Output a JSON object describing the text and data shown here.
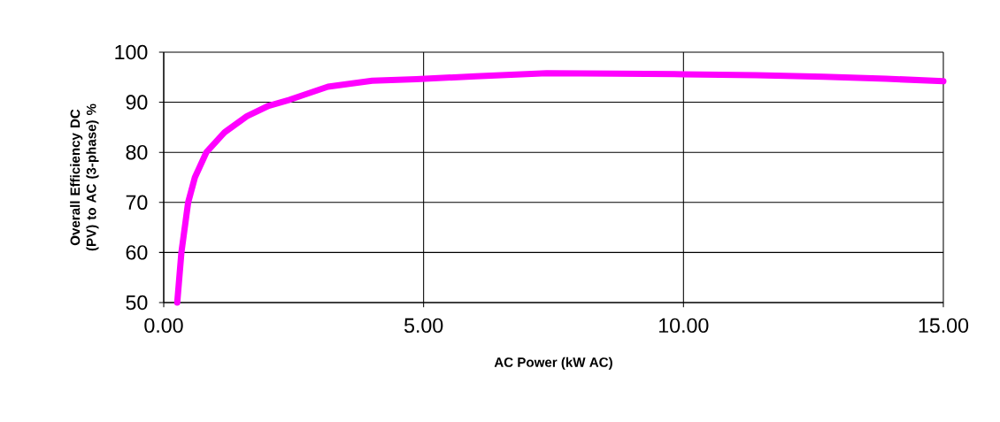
{
  "chart_data": {
    "type": "line",
    "xlabel": "AC Power (kW AC)",
    "ylabel": "Overall Efficiency DC (PV) to AC (3-phase) %",
    "x": [
      0.26,
      0.34,
      0.47,
      0.6,
      0.82,
      1.17,
      1.6,
      2.02,
      2.42,
      3.16,
      4.01,
      4.86,
      6.0,
      7.37,
      8.7,
      10.0,
      11.4,
      12.7,
      13.9,
      15.0
    ],
    "values": [
      50,
      60,
      70,
      75,
      80,
      84,
      87.2,
      89.3,
      90.5,
      93.1,
      94.3,
      94.6,
      95.2,
      95.8,
      95.7,
      95.6,
      95.4,
      95.1,
      94.7,
      94.2
    ],
    "color": "#ff00ff",
    "xlim": [
      0,
      15
    ],
    "ylim": [
      50,
      100
    ],
    "xticks": [
      {
        "value": 0,
        "label": "0.00"
      },
      {
        "value": 5,
        "label": "5.00"
      },
      {
        "value": 10,
        "label": "10.00"
      },
      {
        "value": 15,
        "label": "15.00"
      }
    ],
    "yticks": [
      50,
      60,
      70,
      80,
      90,
      100
    ],
    "grid": true,
    "marker": "none",
    "line_style": "solid"
  }
}
